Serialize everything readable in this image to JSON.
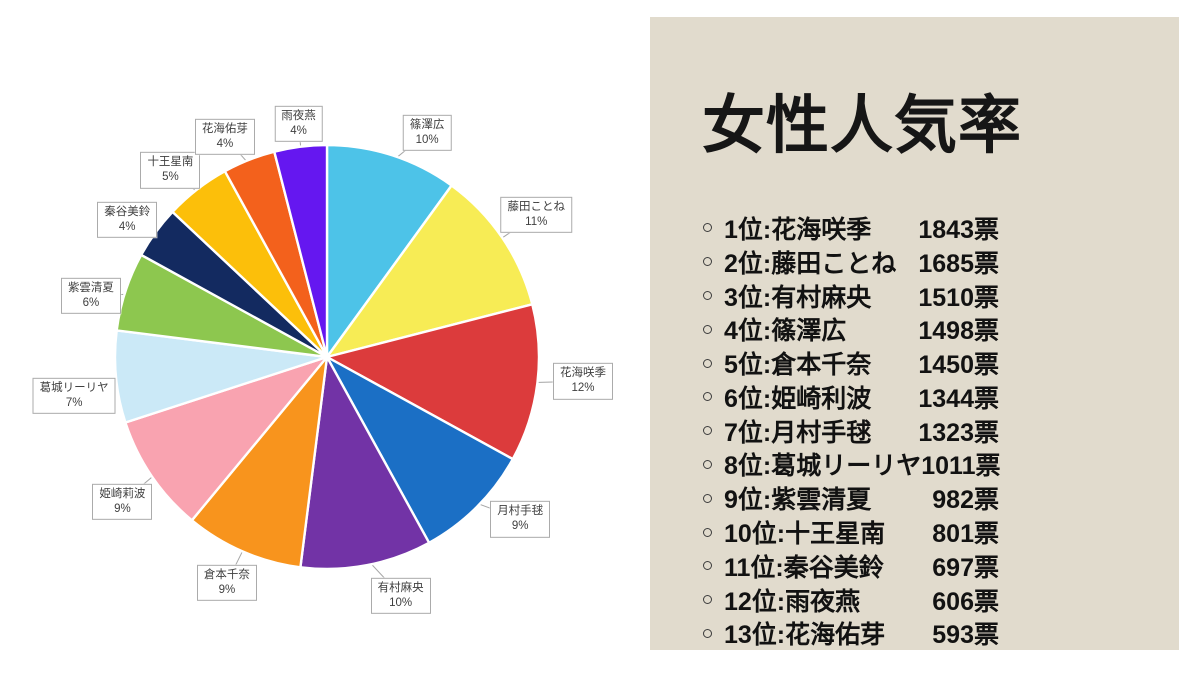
{
  "chart_data": {
    "type": "pie",
    "title": "",
    "start_angle_deg": 0,
    "direction": "clockwise",
    "percent_suffix": "%",
    "legend": "none",
    "labels": [
      "篠澤広",
      "藤田ことね",
      "花海咲季",
      "月村手毬",
      "有村麻央",
      "倉本千奈",
      "姫崎莉波",
      "葛城リーリヤ",
      "紫雲清夏",
      "秦谷美鈴",
      "十王星南",
      "花海佑芽",
      "雨夜燕"
    ],
    "values": [
      10,
      11,
      12,
      9,
      10,
      9,
      9,
      7,
      6,
      4,
      5,
      4,
      4
    ],
    "colors": [
      "#4DC3E8",
      "#F7EC55",
      "#DC3B3C",
      "#1B6FC5",
      "#7233A6",
      "#F8941D",
      "#F9A3B0",
      "#CBE9F7",
      "#8DC74F",
      "#132A60",
      "#FCBF0A",
      "#F3611C",
      "#6517F0"
    ],
    "callout_style": {
      "border": "#ABABAB",
      "text": "#404040",
      "background": "#FFFFFF"
    }
  },
  "panel": {
    "title": "女性人気率",
    "rank_suffix": "位:",
    "vote_suffix": "票",
    "items": [
      {
        "rank": 1,
        "name": "花海咲季",
        "votes": 1843
      },
      {
        "rank": 2,
        "name": "藤田ことね",
        "votes": 1685
      },
      {
        "rank": 3,
        "name": "有村麻央",
        "votes": 1510
      },
      {
        "rank": 4,
        "name": "篠澤広",
        "votes": 1498
      },
      {
        "rank": 5,
        "name": "倉本千奈",
        "votes": 1450
      },
      {
        "rank": 6,
        "name": "姫崎利波",
        "votes": 1344
      },
      {
        "rank": 7,
        "name": "月村手毬",
        "votes": 1323
      },
      {
        "rank": 8,
        "name": "葛城リーリヤ",
        "votes": 1011
      },
      {
        "rank": 9,
        "name": "紫雲清夏",
        "votes": 982
      },
      {
        "rank": 10,
        "name": "十王星南",
        "votes": 801
      },
      {
        "rank": 11,
        "name": "秦谷美鈴",
        "votes": 697
      },
      {
        "rank": 12,
        "name": "雨夜燕",
        "votes": 606
      },
      {
        "rank": 13,
        "name": "花海佑芽",
        "votes": 593
      }
    ],
    "colors": {
      "background": "#E1DBCD",
      "text": "#121212"
    }
  }
}
